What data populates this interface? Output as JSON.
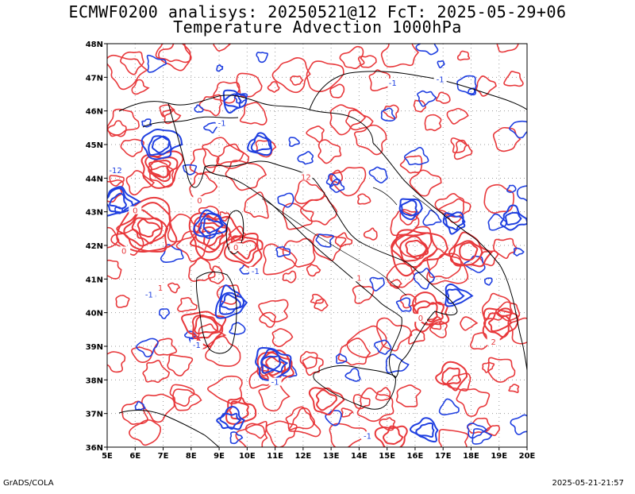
{
  "title_line1": "ECMWF0200 analisys: 20250521@12 FcT: 2025-05-29+06",
  "title_line2": "Temperature Advection 1000hPa",
  "footer_left": "GrADS/COLA",
  "footer_right": "2025-05-21-21:57",
  "colors": {
    "positive": "#e8383b",
    "negative": "#1f3fe0",
    "coast": "#000000",
    "grid": "#9a9a9a"
  },
  "x_ticks": [
    {
      "lon": 5,
      "label": "5E"
    },
    {
      "lon": 6,
      "label": "6E"
    },
    {
      "lon": 7,
      "label": "7E"
    },
    {
      "lon": 8,
      "label": "8E"
    },
    {
      "lon": 9,
      "label": "9E"
    },
    {
      "lon": 10,
      "label": "10E"
    },
    {
      "lon": 11,
      "label": "11E"
    },
    {
      "lon": 12,
      "label": "12E"
    },
    {
      "lon": 13,
      "label": "13E"
    },
    {
      "lon": 14,
      "label": "14E"
    },
    {
      "lon": 15,
      "label": "15E"
    },
    {
      "lon": 16,
      "label": "16E"
    },
    {
      "lon": 17,
      "label": "17E"
    },
    {
      "lon": 18,
      "label": "18E"
    },
    {
      "lon": 19,
      "label": "19E"
    },
    {
      "lon": 20,
      "label": "20E"
    }
  ],
  "y_ticks": [
    {
      "lat": 36,
      "label": "36N"
    },
    {
      "lat": 37,
      "label": "37N"
    },
    {
      "lat": 38,
      "label": "38N"
    },
    {
      "lat": 39,
      "label": "39N"
    },
    {
      "lat": 40,
      "label": "40N"
    },
    {
      "lat": 41,
      "label": "41N"
    },
    {
      "lat": 42,
      "label": "42N"
    },
    {
      "lat": 43,
      "label": "43N"
    },
    {
      "lat": 44,
      "label": "44N"
    },
    {
      "lat": 45,
      "label": "45N"
    },
    {
      "lat": 46,
      "label": "46N"
    },
    {
      "lat": 47,
      "label": "47N"
    },
    {
      "lat": 48,
      "label": "48N"
    }
  ],
  "map_extent": {
    "lon": [
      5,
      20
    ],
    "lat": [
      36,
      48
    ]
  },
  "positive_centers": [
    {
      "lon": 6.4,
      "lat": 42.5,
      "rings": 5
    },
    {
      "lon": 8.7,
      "lat": 42.3,
      "rings": 4
    },
    {
      "lon": 6.9,
      "lat": 44.3,
      "rings": 3
    },
    {
      "lon": 9.9,
      "lat": 41.9,
      "rings": 3
    },
    {
      "lon": 16.0,
      "lat": 41.9,
      "rings": 4
    },
    {
      "lon": 17.9,
      "lat": 41.8,
      "rings": 3
    },
    {
      "lon": 16.5,
      "lat": 40.0,
      "rings": 3
    },
    {
      "lon": 8.5,
      "lat": 39.6,
      "rings": 3
    },
    {
      "lon": 11.0,
      "lat": 38.4,
      "rings": 3
    },
    {
      "lon": 9.7,
      "lat": 37.1,
      "rings": 2
    },
    {
      "lon": 15.2,
      "lat": 36.3,
      "rings": 2
    },
    {
      "lon": 19.0,
      "lat": 39.7,
      "rings": 3
    },
    {
      "lon": 12.8,
      "lat": 37.4,
      "rings": 2
    },
    {
      "lon": 17.3,
      "lat": 38.1,
      "rings": 2
    }
  ],
  "negative_centers": [
    {
      "lon": 8.7,
      "lat": 42.6,
      "rings": 3
    },
    {
      "lon": 6.9,
      "lat": 45.0,
      "rings": 3
    },
    {
      "lon": 9.5,
      "lat": 46.3,
      "rings": 2
    },
    {
      "lon": 5.4,
      "lat": 43.3,
      "rings": 3
    },
    {
      "lon": 9.4,
      "lat": 40.3,
      "rings": 3
    },
    {
      "lon": 10.9,
      "lat": 38.5,
      "rings": 3
    },
    {
      "lon": 17.4,
      "lat": 42.7,
      "rings": 2
    },
    {
      "lon": 15.8,
      "lat": 43.1,
      "rings": 2
    },
    {
      "lon": 17.4,
      "lat": 40.5,
      "rings": 2
    },
    {
      "lon": 16.4,
      "lat": 36.5,
      "rings": 2
    },
    {
      "lon": 9.4,
      "lat": 36.8,
      "rings": 2
    },
    {
      "lon": 19.5,
      "lat": 42.8,
      "rings": 2
    },
    {
      "lon": 10.5,
      "lat": 45.0,
      "rings": 2
    }
  ],
  "contour_labels": [
    {
      "text": "-1",
      "lon": 9.1,
      "lat": 45.6,
      "sign": "neg"
    },
    {
      "text": "-12",
      "lon": 5.3,
      "lat": 44.2,
      "sign": "neg"
    },
    {
      "text": "-1",
      "lon": 10.3,
      "lat": 41.2,
      "sign": "neg"
    },
    {
      "text": "-1",
      "lon": 6.5,
      "lat": 40.5,
      "sign": "neg"
    },
    {
      "text": "-1",
      "lon": 11.0,
      "lat": 37.9,
      "sign": "neg"
    },
    {
      "text": "-1",
      "lon": 15.2,
      "lat": 46.8,
      "sign": "neg"
    },
    {
      "text": "-1",
      "lon": 16.9,
      "lat": 46.9,
      "sign": "neg"
    },
    {
      "text": "-1",
      "lon": 14.3,
      "lat": 36.3,
      "sign": "neg"
    },
    {
      "text": "0",
      "lon": 6.0,
      "lat": 43.0,
      "sign": "pos"
    },
    {
      "text": "0",
      "lon": 9.6,
      "lat": 41.9,
      "sign": "pos"
    },
    {
      "text": "0",
      "lon": 5.6,
      "lat": 41.8,
      "sign": "pos"
    },
    {
      "text": "0",
      "lon": 8.3,
      "lat": 43.3,
      "sign": "pos"
    },
    {
      "text": "0",
      "lon": 16.2,
      "lat": 39.8,
      "sign": "pos"
    },
    {
      "text": "1",
      "lon": 14.0,
      "lat": 41.0,
      "sign": "pos"
    },
    {
      "text": "2",
      "lon": 18.8,
      "lat": 39.1,
      "sign": "pos"
    },
    {
      "text": "12",
      "lon": 12.1,
      "lat": 44.0,
      "sign": "pos"
    },
    {
      "text": "1",
      "lon": 6.9,
      "lat": 40.7,
      "sign": "pos"
    },
    {
      "text": "-1",
      "lon": 8.2,
      "lat": 39.0,
      "sign": "neg"
    }
  ]
}
